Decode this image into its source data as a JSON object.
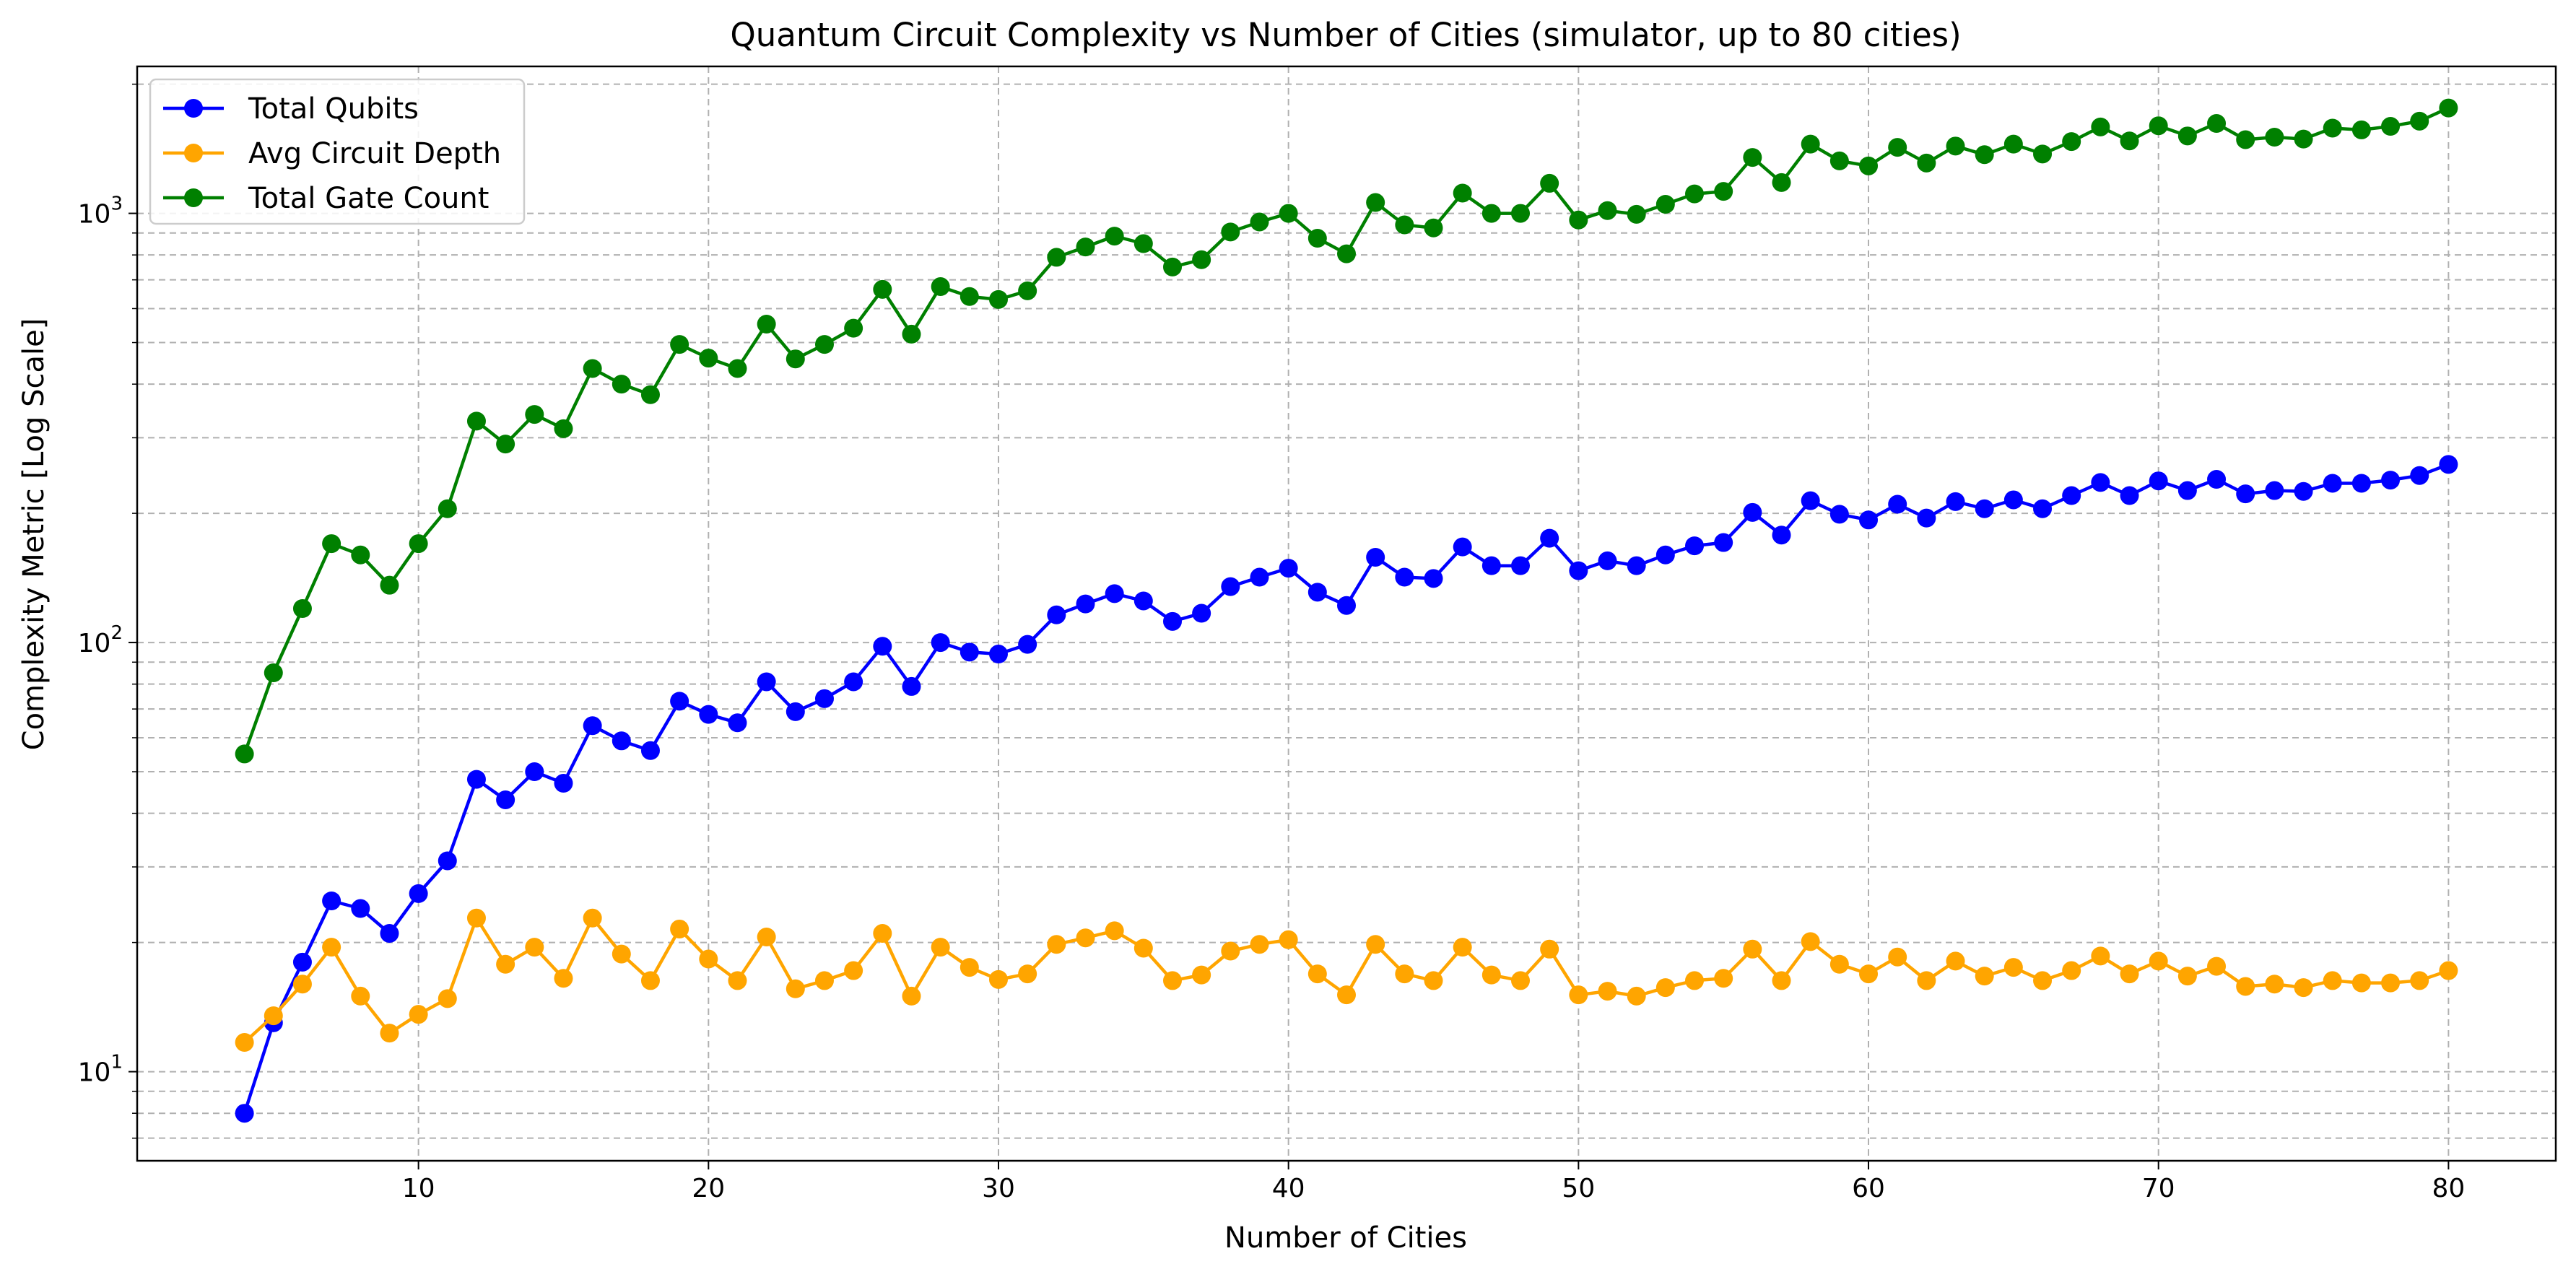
{
  "chart_data": {
    "type": "line",
    "title": "Quantum Circuit Complexity vs Number of Cities (simulator, up to 80 cities)",
    "xlabel": "Number of Cities",
    "ylabel": "Complexity Metric [Log Scale]",
    "yscale": "log",
    "xlim": [
      0.3,
      83.7
    ],
    "ylim": [
      6.2,
      2200
    ],
    "xticks": [
      10,
      20,
      30,
      40,
      50,
      60,
      70,
      80
    ],
    "xtick_labels": [
      "10",
      "20",
      "30",
      "40",
      "50",
      "60",
      "70",
      "80"
    ],
    "yticks": [
      10,
      100,
      1000
    ],
    "ytick_labels": [
      {
        "base": "10",
        "exp": "1"
      },
      {
        "base": "10",
        "exp": "2"
      },
      {
        "base": "10",
        "exp": "3"
      }
    ],
    "grid": true,
    "legend_position": "top-left",
    "x": [
      4,
      5,
      6,
      7,
      8,
      9,
      10,
      11,
      12,
      13,
      14,
      15,
      16,
      17,
      18,
      19,
      20,
      21,
      22,
      23,
      24,
      25,
      26,
      27,
      28,
      29,
      30,
      31,
      32,
      33,
      34,
      35,
      36,
      37,
      38,
      39,
      40,
      41,
      42,
      43,
      44,
      45,
      46,
      47,
      48,
      49,
      50,
      51,
      52,
      53,
      54,
      55,
      56,
      57,
      58,
      59,
      60,
      61,
      62,
      63,
      64,
      65,
      66,
      67,
      68,
      69,
      70,
      71,
      72,
      73,
      74,
      75,
      76,
      77,
      78,
      79,
      80
    ],
    "series": [
      {
        "name": "Total Qubits",
        "color": "#0000ff",
        "values": [
          8,
          13,
          18,
          25,
          24,
          21,
          26,
          31,
          48,
          43,
          50,
          47,
          64,
          59,
          56,
          73,
          68,
          65,
          81,
          69,
          74,
          81,
          98,
          79,
          100,
          95,
          94,
          99,
          116,
          123,
          130,
          125,
          112,
          117,
          135,
          142,
          149,
          131,
          122,
          158,
          142,
          141,
          167,
          151,
          151,
          175,
          147,
          155,
          151,
          160,
          168,
          171,
          201,
          178,
          214,
          199,
          193,
          210,
          195,
          213,
          205,
          215,
          205,
          220,
          236,
          220,
          238,
          226,
          240,
          222,
          226,
          225,
          235,
          235,
          239,
          245,
          260
        ]
      },
      {
        "name": "Avg Circuit Depth",
        "color": "#ffa500",
        "values": [
          11.7,
          13.5,
          16,
          19.5,
          15,
          12.3,
          13.6,
          14.8,
          22.8,
          17.8,
          19.5,
          16.5,
          22.8,
          18.8,
          16.3,
          21.5,
          18.3,
          16.3,
          20.6,
          15.6,
          16.3,
          17.2,
          21,
          15,
          19.5,
          17.5,
          16.4,
          16.9,
          19.8,
          20.5,
          21.3,
          19.4,
          16.3,
          16.8,
          19.1,
          19.8,
          20.3,
          16.9,
          15.1,
          19.8,
          16.9,
          16.3,
          19.5,
          16.8,
          16.3,
          19.3,
          15.1,
          15.4,
          15,
          15.7,
          16.3,
          16.5,
          19.3,
          16.3,
          20.1,
          17.8,
          16.9,
          18.5,
          16.3,
          18.1,
          16.7,
          17.5,
          16.3,
          17.2,
          18.6,
          16.9,
          18.1,
          16.7,
          17.6,
          15.8,
          16,
          15.7,
          16.3,
          16.1,
          16.1,
          16.3,
          17.2
        ]
      },
      {
        "name": "Total Gate Count",
        "color": "#008000",
        "values": [
          55,
          85,
          120,
          170,
          160,
          136,
          170,
          205,
          328,
          290,
          340,
          315,
          435,
          400,
          378,
          495,
          460,
          435,
          552,
          458,
          495,
          540,
          665,
          523,
          675,
          640,
          630,
          660,
          790,
          835,
          885,
          850,
          750,
          780,
          905,
          955,
          1000,
          875,
          805,
          1060,
          940,
          925,
          1115,
          1000,
          1000,
          1175,
          965,
          1015,
          995,
          1050,
          1110,
          1125,
          1350,
          1180,
          1450,
          1325,
          1290,
          1425,
          1310,
          1435,
          1370,
          1450,
          1375,
          1470,
          1590,
          1475,
          1600,
          1515,
          1620,
          1485,
          1505,
          1490,
          1580,
          1565,
          1595,
          1640,
          1760
        ]
      }
    ]
  }
}
